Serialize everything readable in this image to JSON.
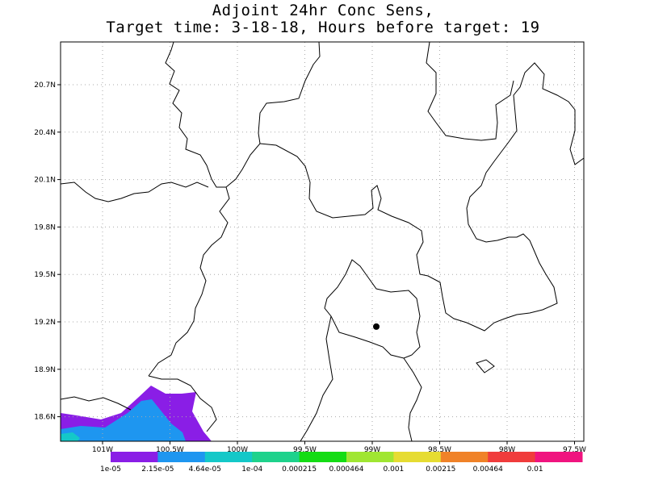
{
  "title_line1": "Adjoint 24hr Conc Sens,",
  "title_line2": "Target time: 3-18-18, Hours before target: 19",
  "map": {
    "lat_ticks": [
      "20.7N",
      "20.4N",
      "20.1N",
      "19.8N",
      "19.5N",
      "19.2N",
      "18.9N",
      "18.6N"
    ],
    "lon_ticks": [
      "101W",
      "100.5W",
      "100W",
      "99.5W",
      "99W",
      "98.5W",
      "98W",
      "97.5W"
    ],
    "target_point": {
      "lat": 19.17,
      "lon": -98.97
    }
  },
  "colorbar": {
    "labels": [
      "1e-05",
      "2.15e-05",
      "4.64e-05",
      "1e-04",
      "0.000215",
      "0.000464",
      "0.001",
      "0.00215",
      "0.00464",
      "0.01"
    ],
    "colors": [
      "#8a1ee6",
      "#1e96f0",
      "#14c8c8",
      "#1ed28c",
      "#14dc14",
      "#a0e632",
      "#e6dc32",
      "#f08228",
      "#f03c3c",
      "#f0147f"
    ]
  }
}
